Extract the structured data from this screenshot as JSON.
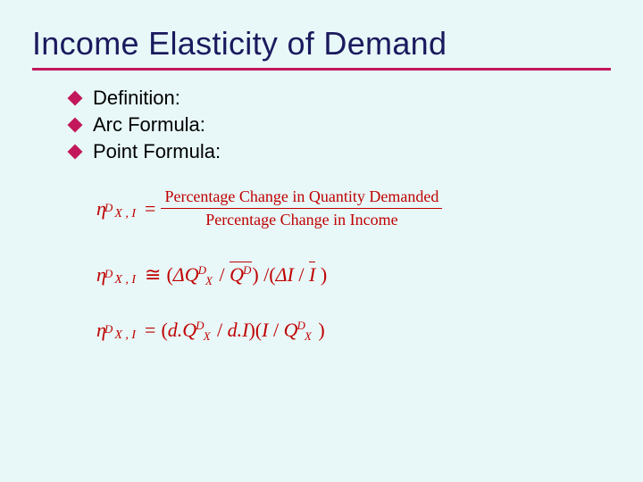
{
  "background_color": "#e8f8f8",
  "title": {
    "text": "Income Elasticity of Demand",
    "color": "#1a1a5e",
    "fontsize": 36,
    "underline_color": "#c2185b"
  },
  "bullets": {
    "color": "#c2185b",
    "items": [
      {
        "label": "Definition:"
      },
      {
        "label": "Arc Formula:"
      },
      {
        "label": "Point Formula:"
      }
    ]
  },
  "formulas": {
    "color": "#c00000",
    "eta_symbol": "η",
    "super": "D",
    "sub": "X , I",
    "def_numerator": "Percentage Change in Quantity Demanded",
    "def_denominator": "Percentage Change in Income",
    "eq": "=",
    "approx": "≅"
  }
}
